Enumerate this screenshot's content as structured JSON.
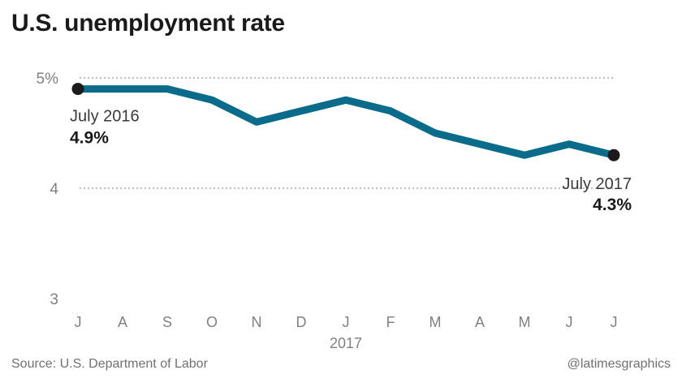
{
  "chart_data": {
    "type": "line",
    "title": "U.S. unemployment rate",
    "categories": [
      "J",
      "A",
      "S",
      "O",
      "N",
      "D",
      "J",
      "F",
      "M",
      "A",
      "M",
      "J",
      "J"
    ],
    "year_marker": {
      "label": "2017",
      "category_index": 6
    },
    "series": [
      {
        "values": [
          4.9,
          4.9,
          4.9,
          4.8,
          4.6,
          4.7,
          4.8,
          4.7,
          4.5,
          4.4,
          4.3,
          4.4,
          4.3
        ],
        "color": "#0b6b8a"
      }
    ],
    "y_ticks": [
      {
        "value": 5,
        "label": "5%",
        "gridline": true
      },
      {
        "value": 4,
        "label": "4",
        "gridline": true
      },
      {
        "value": 3,
        "label": "3",
        "gridline": false
      }
    ],
    "ylim": [
      3,
      5
    ],
    "annotations": [
      {
        "index": 0,
        "label": "July 2016",
        "value_label": "4.9%"
      },
      {
        "index": 12,
        "label": "July 2017",
        "value_label": "4.3%"
      }
    ]
  },
  "footer": {
    "source": "Source: U.S. Department of Labor",
    "credit": "@latimesgraphics"
  }
}
